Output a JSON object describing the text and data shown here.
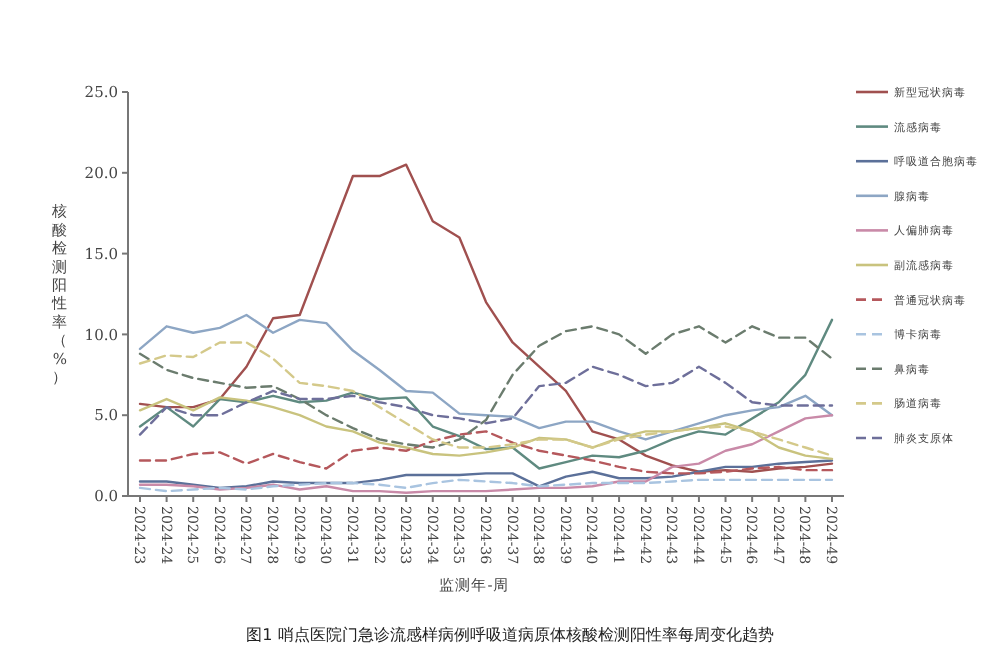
{
  "chart_data": {
    "type": "line",
    "title": "图1 哨点医院门急诊流感样病例呼吸道病原体核酸检测阳性率每周变化趋势",
    "xlabel": "监测年-周",
    "ylabel": "核酸检测阳性率（%）",
    "categories": [
      "2024-23",
      "2024-24",
      "2024-25",
      "2024-26",
      "2024-27",
      "2024-28",
      "2024-29",
      "2024-30",
      "2024-31",
      "2024-32",
      "2024-33",
      "2024-34",
      "2024-35",
      "2024-36",
      "2024-37",
      "2024-38",
      "2024-39",
      "2024-40",
      "2024-41",
      "2024-42",
      "2024-43",
      "2024-44",
      "2024-45",
      "2024-46",
      "2024-47",
      "2024-48",
      "2024-49"
    ],
    "ylim": [
      0,
      25
    ],
    "yticks": [
      {
        "value": 0,
        "label": "0.0"
      },
      {
        "value": 5,
        "label": "5.0"
      },
      {
        "value": 10,
        "label": "10.0"
      },
      {
        "value": 15,
        "label": "15.0"
      },
      {
        "value": 20,
        "label": "20.0"
      },
      {
        "value": 25,
        "label": "25.0"
      }
    ],
    "legend": "right",
    "grid": false,
    "marker": "none",
    "series": [
      {
        "name": "新型冠状病毒",
        "color": "#a0504f",
        "line_style": "solid",
        "values": [
          5.7,
          5.5,
          5.5,
          6.0,
          8.0,
          11.0,
          11.2,
          15.5,
          19.8,
          19.8,
          20.5,
          17.0,
          16.0,
          12.0,
          9.5,
          8.0,
          6.5,
          4.0,
          3.5,
          2.5,
          1.9,
          1.5,
          1.6,
          1.5,
          1.7,
          1.8,
          2.0
        ]
      },
      {
        "name": "流感病毒",
        "color": "#5f8a80",
        "line_style": "solid",
        "values": [
          4.3,
          5.5,
          4.3,
          6.0,
          5.8,
          6.2,
          5.8,
          5.9,
          6.4,
          6.0,
          6.1,
          4.3,
          3.7,
          2.9,
          3.0,
          1.7,
          2.1,
          2.5,
          2.4,
          2.8,
          3.5,
          4.0,
          3.8,
          4.8,
          5.8,
          7.5,
          10.9
        ]
      },
      {
        "name": "呼吸道合胞病毒",
        "color": "#5b7099",
        "line_style": "solid",
        "values": [
          0.9,
          0.9,
          0.7,
          0.5,
          0.6,
          0.9,
          0.8,
          0.8,
          0.8,
          1.0,
          1.3,
          1.3,
          1.3,
          1.4,
          1.4,
          0.6,
          1.2,
          1.5,
          1.1,
          1.1,
          1.2,
          1.5,
          1.8,
          1.8,
          2.0,
          2.1,
          2.2
        ]
      },
      {
        "name": "腺病毒",
        "color": "#8da6c4",
        "line_style": "solid",
        "values": [
          9.1,
          10.5,
          10.1,
          10.4,
          11.2,
          10.1,
          10.9,
          10.7,
          9.0,
          7.8,
          6.5,
          6.4,
          5.1,
          5.0,
          4.9,
          4.2,
          4.6,
          4.6,
          4.0,
          3.5,
          4.0,
          4.5,
          5.0,
          5.3,
          5.5,
          6.2,
          5.0
        ]
      },
      {
        "name": "人偏肺病毒",
        "color": "#c98aa8",
        "line_style": "solid",
        "values": [
          0.7,
          0.7,
          0.6,
          0.4,
          0.5,
          0.7,
          0.4,
          0.6,
          0.3,
          0.3,
          0.2,
          0.3,
          0.3,
          0.3,
          0.4,
          0.5,
          0.5,
          0.6,
          0.9,
          0.9,
          1.8,
          2.0,
          2.8,
          3.2,
          4.0,
          4.8,
          5.0
        ]
      },
      {
        "name": "副流感病毒",
        "color": "#c9c37e",
        "line_style": "solid",
        "values": [
          5.3,
          6.0,
          5.3,
          6.1,
          5.9,
          5.5,
          5.0,
          4.3,
          4.0,
          3.3,
          3.0,
          2.6,
          2.5,
          2.7,
          3.0,
          3.6,
          3.5,
          3.0,
          3.6,
          4.0,
          4.0,
          4.2,
          4.5,
          4.0,
          3.0,
          2.5,
          2.3
        ]
      },
      {
        "name": "普通冠状病毒",
        "color": "#b5585c",
        "line_style": "dashed",
        "values": [
          2.2,
          2.2,
          2.6,
          2.7,
          2.0,
          2.6,
          2.1,
          1.7,
          2.8,
          3.0,
          2.8,
          3.4,
          3.8,
          4.0,
          3.3,
          2.8,
          2.5,
          2.2,
          1.8,
          1.5,
          1.4,
          1.4,
          1.5,
          1.7,
          1.8,
          1.6,
          1.6
        ]
      },
      {
        "name": "博卡病毒",
        "color": "#a9c4e0",
        "line_style": "dashed",
        "values": [
          0.5,
          0.3,
          0.4,
          0.5,
          0.4,
          0.6,
          0.7,
          0.8,
          0.8,
          0.7,
          0.5,
          0.8,
          1.0,
          0.9,
          0.8,
          0.6,
          0.7,
          0.8,
          0.8,
          0.8,
          0.9,
          1.0,
          1.0,
          1.0,
          1.0,
          1.0,
          1.0
        ]
      },
      {
        "name": "鼻病毒",
        "color": "#6b7c6e",
        "line_style": "dashed",
        "values": [
          8.8,
          7.8,
          7.3,
          7.0,
          6.7,
          6.8,
          6.0,
          5.0,
          4.2,
          3.5,
          3.2,
          3.0,
          3.5,
          4.7,
          7.5,
          9.3,
          10.2,
          10.5,
          10.0,
          8.8,
          10.0,
          10.5,
          9.5,
          10.5,
          9.8,
          9.8,
          8.5
        ]
      },
      {
        "name": "肠道病毒",
        "color": "#d4c98a",
        "line_style": "dashed",
        "values": [
          8.2,
          8.7,
          8.6,
          9.5,
          9.5,
          8.5,
          7.0,
          6.8,
          6.5,
          5.5,
          4.5,
          3.5,
          3.0,
          3.0,
          3.2,
          3.5,
          3.5,
          3.0,
          3.5,
          3.8,
          4.0,
          4.2,
          4.3,
          4.0,
          3.5,
          3.0,
          2.5
        ]
      },
      {
        "name": "肺炎支原体",
        "color": "#6e6f9a",
        "line_style": "dashed",
        "values": [
          3.8,
          5.5,
          5.0,
          5.0,
          5.8,
          6.5,
          6.0,
          6.0,
          6.2,
          5.8,
          5.5,
          5.0,
          4.8,
          4.5,
          4.8,
          6.8,
          7.0,
          8.0,
          7.5,
          6.8,
          7.0,
          8.0,
          7.0,
          5.8,
          5.6,
          5.6,
          5.6
        ]
      }
    ]
  }
}
